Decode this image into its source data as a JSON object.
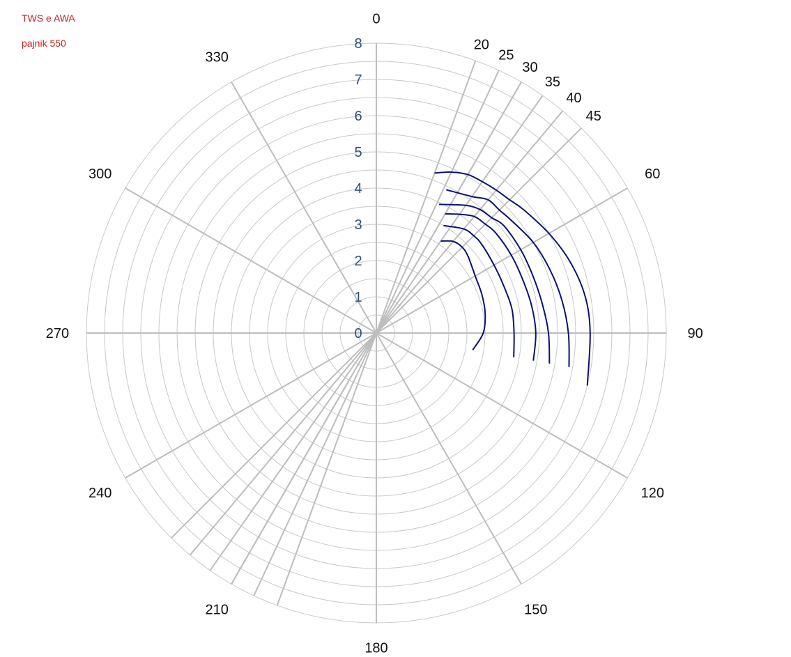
{
  "legend": {
    "line1": "TWS e AWA",
    "line2": "pajnik 550"
  },
  "chart_data": {
    "type": "polar-line",
    "title": "",
    "angular_unit": "degrees",
    "direction": "clockwise",
    "zero_at": "top",
    "radial_range": [
      0,
      8
    ],
    "radial_ticks": [
      "0",
      "1",
      "2",
      "3",
      "4",
      "5",
      "6",
      "7",
      "8"
    ],
    "angular_ticks": [
      {
        "angle": 0,
        "label": "0"
      },
      {
        "angle": 30,
        "label": ""
      },
      {
        "angle": 60,
        "label": "60"
      },
      {
        "angle": 90,
        "label": "90"
      },
      {
        "angle": 120,
        "label": "120"
      },
      {
        "angle": 150,
        "label": "150"
      },
      {
        "angle": 180,
        "label": "180"
      },
      {
        "angle": 210,
        "label": "210"
      },
      {
        "angle": 240,
        "label": "240"
      },
      {
        "angle": 270,
        "label": "270"
      },
      {
        "angle": 300,
        "label": "300"
      },
      {
        "angle": 330,
        "label": "330"
      }
    ],
    "extra_angle_lines": [
      {
        "angle": 20,
        "label": "20"
      },
      {
        "angle": 25,
        "label": "25"
      },
      {
        "angle": 30,
        "label": "30"
      },
      {
        "angle": 35,
        "label": "35"
      },
      {
        "angle": 40,
        "label": "40"
      },
      {
        "angle": 45,
        "label": "45"
      }
    ],
    "grid": true,
    "line_color": "#0a1172",
    "grid_color": "#c8c8c8",
    "spoke_color": "#bdbdbd",
    "series": [
      {
        "points": [
          [
            35,
            3.1
          ],
          [
            40,
            3.3
          ],
          [
            45,
            3.35
          ],
          [
            50,
            3.3
          ],
          [
            60,
            3.15
          ],
          [
            70,
            3.1
          ],
          [
            80,
            3.05
          ],
          [
            90,
            2.95
          ],
          [
            100,
            2.7
          ]
        ]
      },
      {
        "points": [
          [
            32,
            3.5
          ],
          [
            40,
            3.75
          ],
          [
            45,
            3.8
          ],
          [
            50,
            3.8
          ],
          [
            60,
            3.75
          ],
          [
            70,
            3.75
          ],
          [
            80,
            3.8
          ],
          [
            90,
            3.8
          ],
          [
            100,
            3.85
          ]
        ]
      },
      {
        "points": [
          [
            30,
            3.8
          ],
          [
            35,
            4.0
          ],
          [
            40,
            4.2
          ],
          [
            45,
            4.25
          ],
          [
            50,
            4.3
          ],
          [
            60,
            4.3
          ],
          [
            70,
            4.3
          ],
          [
            80,
            4.35
          ],
          [
            90,
            4.4
          ],
          [
            100,
            4.4
          ]
        ]
      },
      {
        "points": [
          [
            26,
            3.95
          ],
          [
            35,
            4.3
          ],
          [
            40,
            4.45
          ],
          [
            45,
            4.5
          ],
          [
            50,
            4.6
          ],
          [
            60,
            4.6
          ],
          [
            70,
            4.6
          ],
          [
            80,
            4.65
          ],
          [
            90,
            4.75
          ],
          [
            100,
            4.85
          ]
        ]
      },
      {
        "points": [
          [
            26,
            4.4
          ],
          [
            35,
            4.6
          ],
          [
            40,
            4.8
          ],
          [
            45,
            4.8
          ],
          [
            50,
            4.85
          ],
          [
            60,
            5.0
          ],
          [
            70,
            5.1
          ],
          [
            80,
            5.2
          ],
          [
            90,
            5.3
          ],
          [
            100,
            5.4
          ]
        ]
      },
      {
        "points": [
          [
            20,
            4.7
          ],
          [
            25,
            4.9
          ],
          [
            30,
            5.05
          ],
          [
            35,
            5.1
          ],
          [
            40,
            5.15
          ],
          [
            45,
            5.2
          ],
          [
            50,
            5.3
          ],
          [
            60,
            5.5
          ],
          [
            70,
            5.7
          ],
          [
            80,
            5.85
          ],
          [
            90,
            5.9
          ],
          [
            104,
            6.0
          ]
        ]
      }
    ]
  }
}
